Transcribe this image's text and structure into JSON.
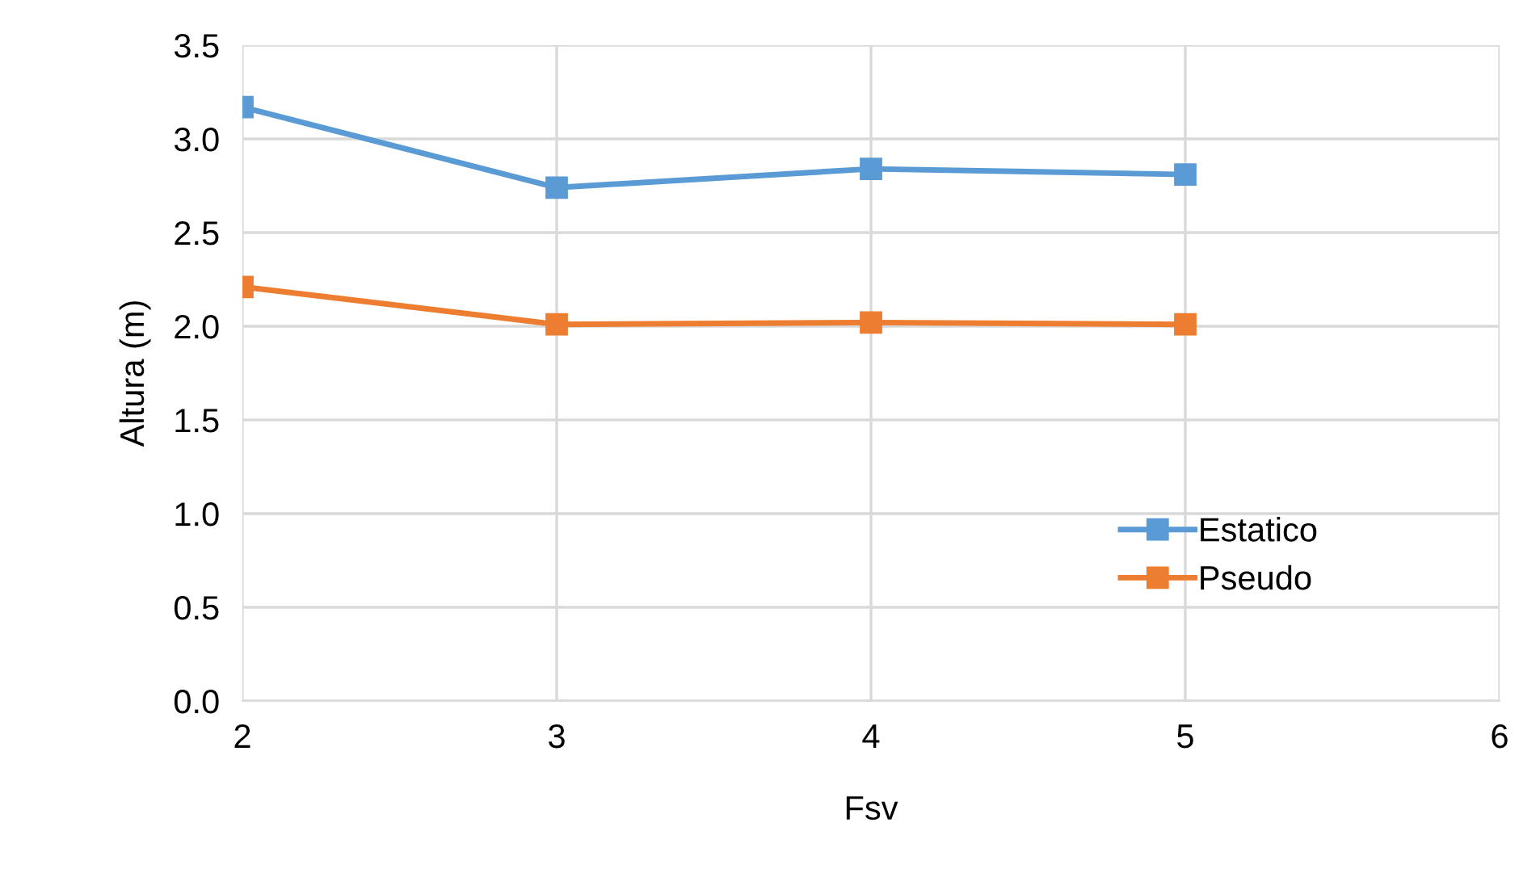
{
  "chart_data": {
    "type": "line",
    "xlabel": "Fsv",
    "ylabel": "Altura (m)",
    "x": [
      2,
      3,
      4,
      5
    ],
    "series": [
      {
        "name": "Estatico",
        "color": "#5b9bd5",
        "values": [
          3.17,
          2.74,
          2.84,
          2.81
        ]
      },
      {
        "name": "Pseudo",
        "color": "#ed7d31",
        "values": [
          2.21,
          2.01,
          2.02,
          2.01
        ]
      }
    ],
    "xlim": [
      2,
      6
    ],
    "xticks": [
      2,
      3,
      4,
      5,
      6
    ],
    "ylim": [
      0,
      3.5
    ],
    "yticks": [
      {
        "value": 0,
        "label": "0.0"
      },
      {
        "value": 0.5,
        "label": "0.5"
      },
      {
        "value": 1,
        "label": "1.0"
      },
      {
        "value": 1.5,
        "label": "1.5"
      },
      {
        "value": 2,
        "label": "2.0"
      },
      {
        "value": 2.5,
        "label": "2.5"
      },
      {
        "value": 3,
        "label": "3.0"
      },
      {
        "value": 3.5,
        "label": "3.5"
      }
    ],
    "grid": true,
    "legend": "right",
    "marker": "square",
    "line_style": "solid"
  }
}
